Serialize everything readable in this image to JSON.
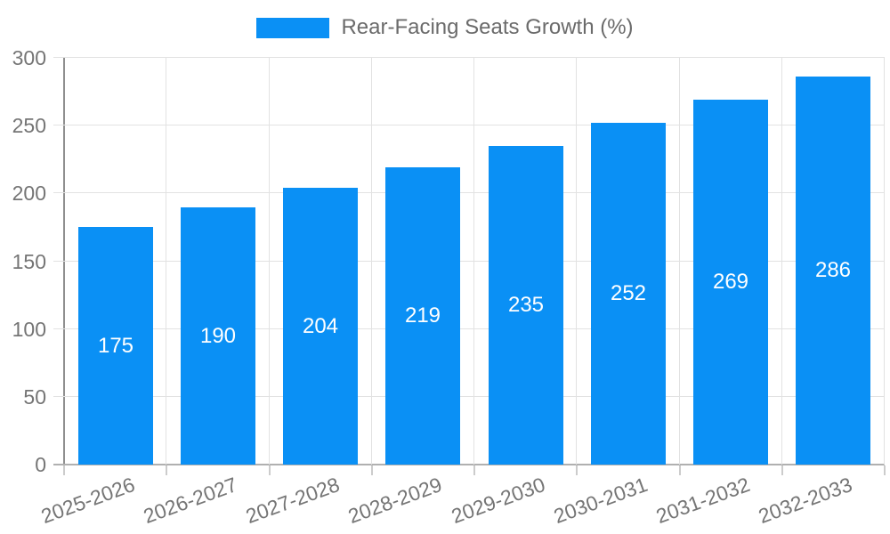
{
  "legend": {
    "series_label": "Rear-Facing Seats Growth (%)"
  },
  "colors": {
    "bar": "#0a90f5",
    "grid": "#e2e2e2",
    "y_axis": "#8f8f8f",
    "x_axis": "#b0b0b0",
    "x_boundary_tick": "#cccccc",
    "tick_label": "#757575",
    "legend_text": "#6b6b6b",
    "value_label": "#ffffff",
    "background": "#ffffff"
  },
  "chart_data": {
    "type": "bar",
    "title": "",
    "categories": [
      "2025-2026",
      "2026-2027",
      "2027-2028",
      "2028-2029",
      "2029-2030",
      "2030-2031",
      "2031-2032",
      "2032-2033"
    ],
    "series": [
      {
        "name": "Rear-Facing Seats Growth (%)",
        "values": [
          175,
          190,
          204,
          219,
          235,
          252,
          269,
          286
        ]
      }
    ],
    "values": [
      175,
      190,
      204,
      219,
      235,
      252,
      269,
      286
    ],
    "bar_value_labels": [
      "175",
      "190",
      "204",
      "219",
      "235",
      "252",
      "269",
      "286"
    ],
    "xlabel": "",
    "ylabel": "",
    "ylim": [
      0,
      300
    ],
    "yticks": [
      0,
      50,
      100,
      150,
      200,
      250,
      300
    ],
    "ytick_labels": [
      "0",
      "50",
      "100",
      "150",
      "200",
      "250",
      "300"
    ],
    "grid": true,
    "legend_position": "top",
    "xtick_rotation_deg": -20
  }
}
